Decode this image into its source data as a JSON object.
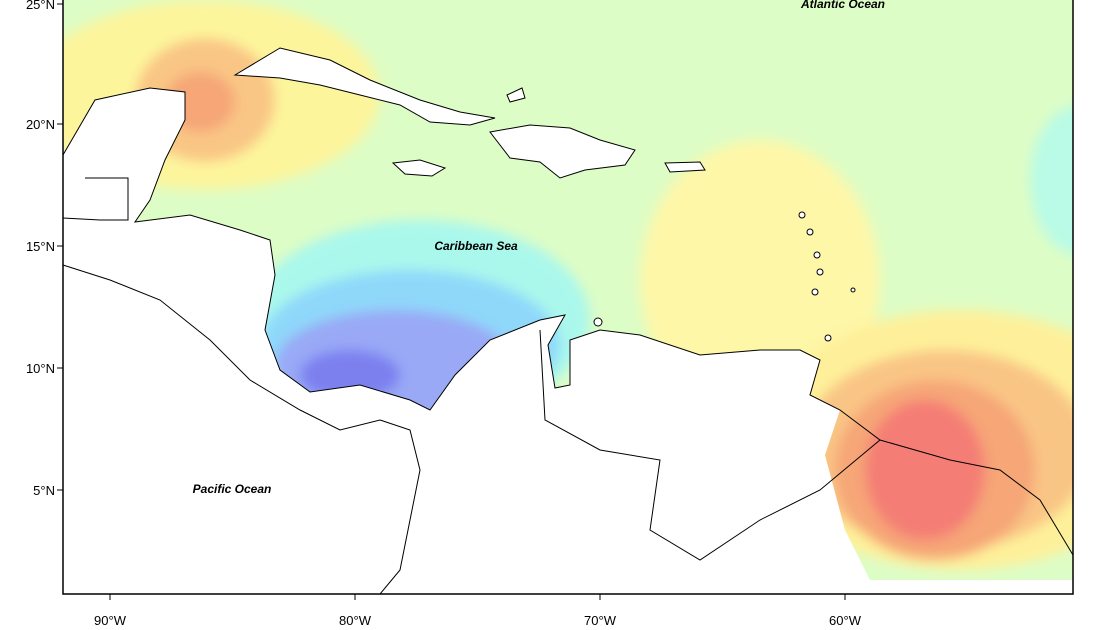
{
  "map": {
    "lat_ticks": [
      "25°N",
      "20°N",
      "15°N",
      "10°N",
      "5°N"
    ],
    "lon_ticks": [
      "90°W",
      "80°W",
      "70°W",
      "60°W"
    ],
    "places": [
      "Atlantic Ocean",
      "Caribbean Sea",
      "Pacific Ocean"
    ]
  }
}
